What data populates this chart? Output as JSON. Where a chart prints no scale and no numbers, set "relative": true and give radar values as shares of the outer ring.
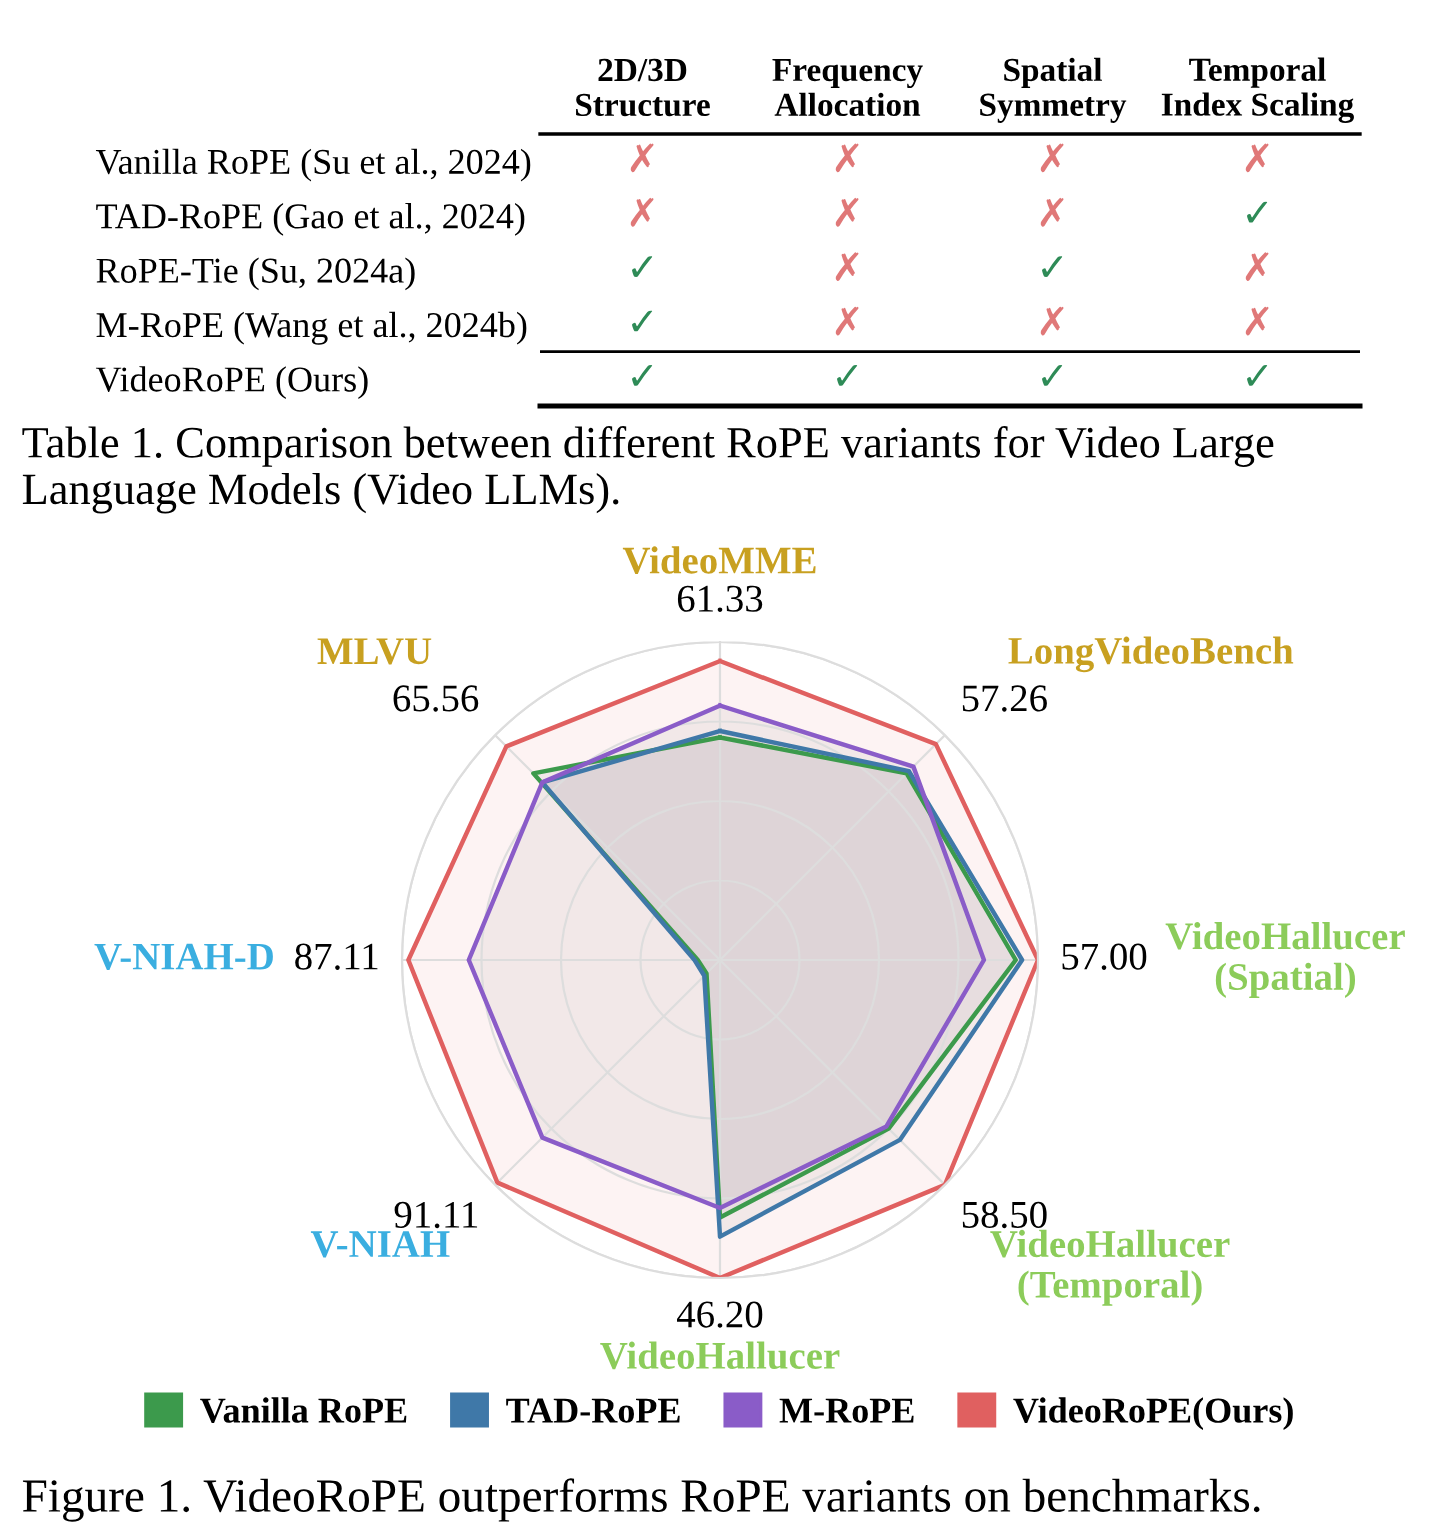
{
  "chart_data": [
    {
      "type": "heatmap",
      "categories": [
        "2D/3D\nStructure",
        "Frequency\nAllocation",
        "Spatial\nSymmetry",
        "Temporal\nIndex Scaling"
      ],
      "y_categories": [
        "Vanilla RoPE (Su et al., 2024)",
        "TAD-RoPE (Gao et al., 2024)",
        "RoPE-Tie (Su, 2024a)",
        "M-RoPE (Wang et al., 2024b)",
        "VideoRoPE (Ours)"
      ],
      "cells": [
        [
          null,
          null,
          null,
          null
        ],
        [
          null,
          null,
          null,
          null
        ],
        [
          null,
          null,
          null,
          null
        ],
        [
          null,
          null,
          null,
          null
        ],
        [
          null,
          null,
          null,
          null
        ]
      ],
      "cell_labels": [
        [
          "✗",
          "✗",
          "✗",
          "✗"
        ],
        [
          "✗",
          "✗",
          "✗",
          "✓"
        ],
        [
          "✓",
          "✗",
          "✓",
          "✗"
        ],
        [
          "✓",
          "✗",
          "✗",
          "✗"
        ],
        [
          "✓",
          "✓",
          "✓",
          "✓"
        ]
      ],
      "annotations": [
        "Table 1. Comparison between different RoPE variants for Video Large Language Models (Video LLMs)."
      ]
    },
    {
      "type": "radar",
      "relative": true,
      "grid": true,
      "legend": "bottom",
      "categories": [
        "VideoMME",
        "LongVideoBench",
        "VideoHallucer\n(Spatial)",
        "VideoHallucer\n(Temporal)",
        "VideoHallucer",
        "V-NIAH",
        "V-NIAH-D",
        "MLVU"
      ],
      "series": [
        {
          "name": "Vanilla RoPE",
          "color": "#3c9a4c",
          "values": [
            0.7,
            0.83,
            0.93,
            0.75,
            0.81,
            0.06,
            0.07,
            0.83
          ]
        },
        {
          "name": "TAD-RoPE",
          "color": "#3f78a8",
          "values": [
            0.72,
            0.84,
            0.95,
            0.8,
            0.87,
            0.07,
            0.08,
            0.79
          ]
        },
        {
          "name": "M-RoPE",
          "color": "#8a5cc8",
          "values": [
            0.8,
            0.86,
            0.83,
            0.74,
            0.78,
            0.79,
            0.79,
            0.79
          ]
        },
        {
          "name": "VideoRoPE(Ours)",
          "color": "#e06060",
          "values": [
            0.94,
            0.96,
            1.0,
            1.0,
            1.0,
            0.99,
            0.98,
            0.95
          ]
        }
      ],
      "annotations": [
        {
          "text": "61.33",
          "x": "VideoMME"
        },
        {
          "text": "57.26",
          "x": "LongVideoBench"
        },
        {
          "text": "57.00",
          "x": "VideoHallucer\n(Spatial)"
        },
        {
          "text": "58.50",
          "x": "VideoHallucer\n(Temporal)"
        },
        {
          "text": "46.20",
          "x": "VideoHallucer"
        },
        {
          "text": "91.11",
          "x": "V-NIAH"
        },
        {
          "text": "87.11",
          "x": "V-NIAH-D"
        },
        {
          "text": "65.56",
          "x": "MLVU"
        },
        "Figure 1. VideoRoPE outperforms RoPE variants on benchmarks."
      ]
    }
  ]
}
